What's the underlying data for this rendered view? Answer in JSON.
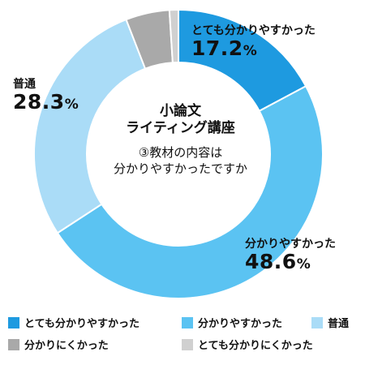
{
  "center": {
    "title_line1": "小論文",
    "title_line2": "ライティング講座",
    "question_line1": "③教材の内容は",
    "question_line2": "分かりやすかったですか"
  },
  "chart_data": {
    "type": "pie",
    "donut": true,
    "title": "小論文ライティング講座 ③教材の内容は分かりやすかったですか",
    "categories": [
      "とても分かりやすかった",
      "分かりやすかった",
      "普通",
      "分かりにくかった",
      "とても分かりにくかった"
    ],
    "values": [
      17.2,
      48.6,
      28.3,
      4.9,
      1.0
    ],
    "colors": [
      "#1e9ae0",
      "#5bc3f2",
      "#aadcf7",
      "#a9a9a9",
      "#d0d0d0"
    ],
    "unit": "%",
    "start": "top, clockwise",
    "legend": "bottom",
    "labels": [
      {
        "name": "とても分かりやすかった",
        "value": "17.2"
      },
      {
        "name": "分かりやすかった",
        "value": "48.6"
      },
      {
        "name": "普通",
        "value": "28.3"
      }
    ]
  }
}
